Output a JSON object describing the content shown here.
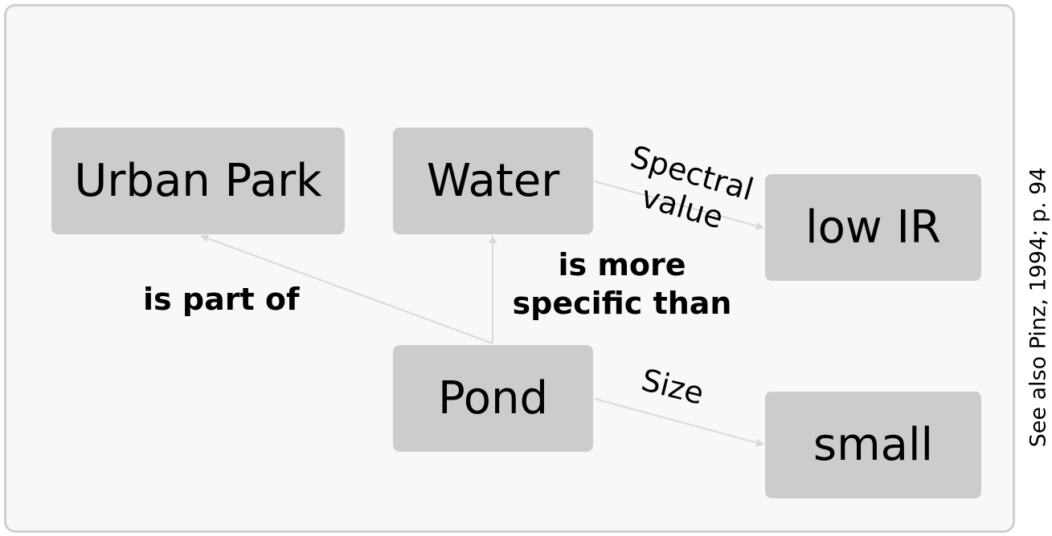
{
  "nodes": {
    "urban_park": "Urban Park",
    "water": "Water",
    "low_ir": "low IR",
    "pond": "Pond",
    "small": "small"
  },
  "relations": {
    "is_part_of": "is part of",
    "more_specific_line1": "is more",
    "more_specific_line2": "specific than",
    "spectral_line1": "Spectral",
    "spectral_line2": "value",
    "size": "Size"
  },
  "side_note": "See also Pinz, 1994; p. 94",
  "colors": {
    "panel_background": "#f8f8f8",
    "panel_border": "#cfcfcf",
    "node_fill": "#cccccc",
    "edge": "#d9d9d9",
    "text": "#000000"
  }
}
